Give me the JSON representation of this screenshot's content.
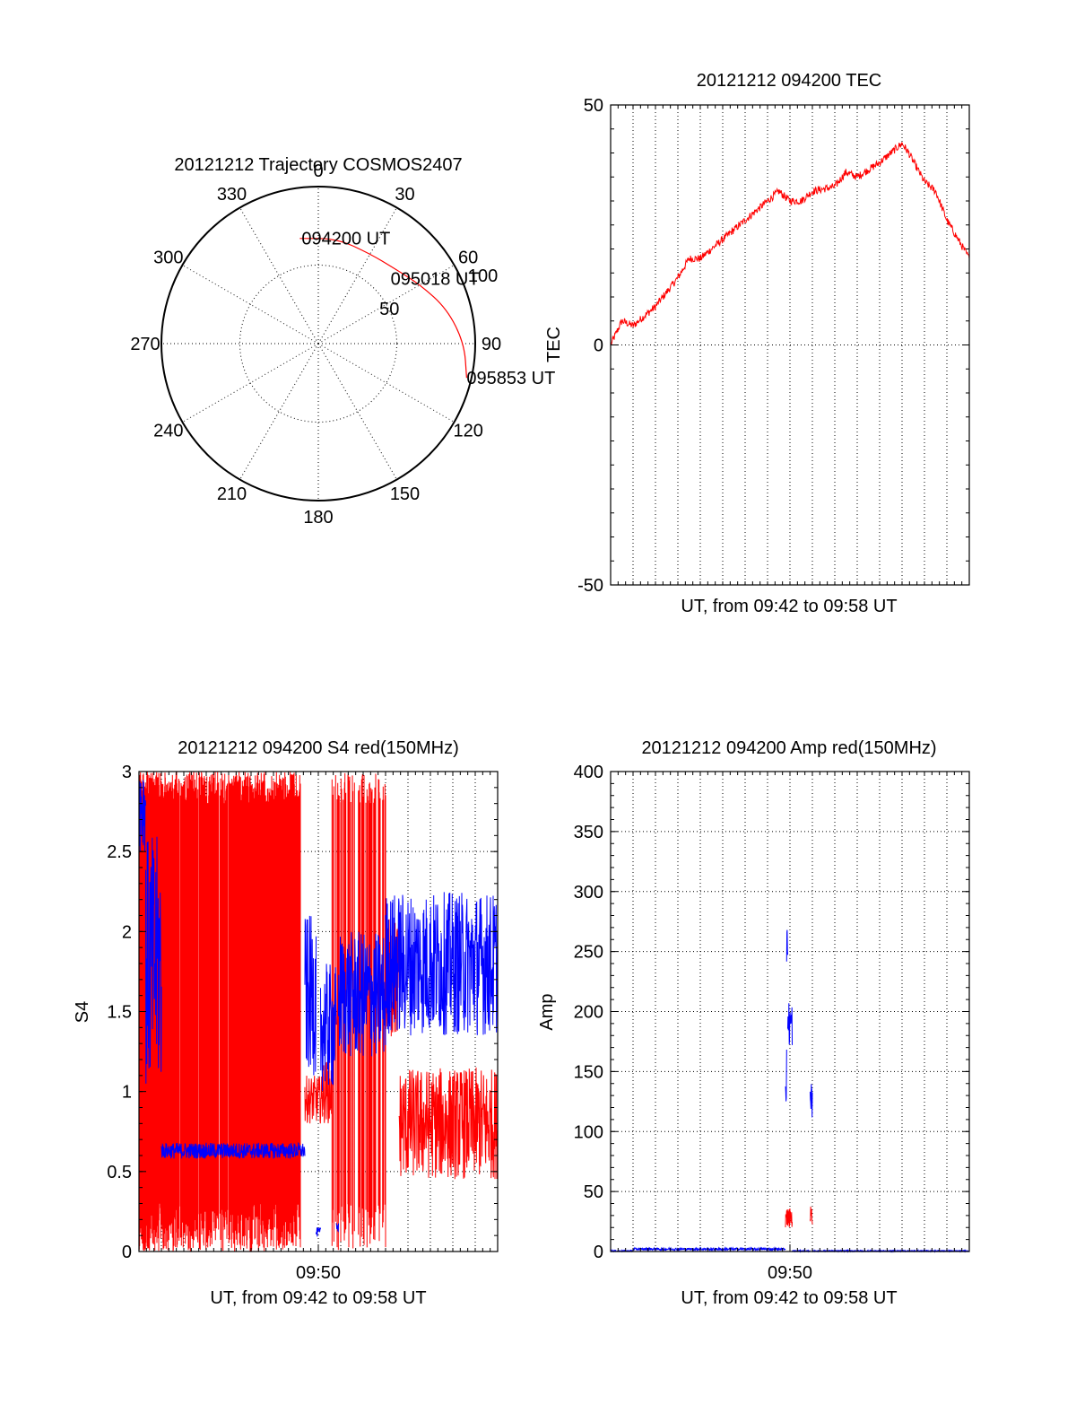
{
  "colors": {
    "red": "#ff0000",
    "blue": "#0000ff",
    "axis": "#000000"
  },
  "chart_data": [
    {
      "type": "polar",
      "title": "20121212 Trajectory COSMOS2407",
      "azimuth_labels": [
        "0",
        "30",
        "60",
        "90",
        "120",
        "150",
        "180",
        "210",
        "240",
        "270",
        "300",
        "330"
      ],
      "radius_labels": [
        "50",
        "100"
      ],
      "rlim": [
        0,
        100
      ],
      "series": [
        {
          "color": "red",
          "points": [
            {
              "az": 350,
              "r": 68
            },
            {
              "az": 10,
              "r": 68
            },
            {
              "az": 30,
              "r": 66
            },
            {
              "az": 45,
              "r": 68
            },
            {
              "az": 60,
              "r": 75
            },
            {
              "az": 75,
              "r": 85
            },
            {
              "az": 90,
              "r": 93
            },
            {
              "az": 103,
              "r": 97
            }
          ]
        }
      ],
      "annotations": [
        {
          "text": "094200 UT",
          "az": 351,
          "r": 68
        },
        {
          "text": "095018 UT",
          "az": 48,
          "r": 62
        },
        {
          "text": "095853 UT",
          "az": 103,
          "r": 97
        }
      ],
      "grid": true
    },
    {
      "type": "line",
      "title": "20121212 094200 TEC",
      "xlabel": "UT, from 09:42 to 09:58 UT",
      "ylabel": "TEC",
      "xlim": [
        "09:42",
        "09:58"
      ],
      "ylim": [
        -50,
        50
      ],
      "yticks": [
        "-50",
        "0",
        "50"
      ],
      "grid": true,
      "series": [
        {
          "color": "red",
          "points": [
            [
              "09:42",
              0
            ],
            [
              "09:42.5",
              5
            ],
            [
              "09:43",
              4
            ],
            [
              "09:44",
              8
            ],
            [
              "09:45",
              14
            ],
            [
              "09:45.5",
              18
            ],
            [
              "09:46",
              18
            ],
            [
              "09:47",
              22
            ],
            [
              "09:48",
              26
            ],
            [
              "09:49",
              30
            ],
            [
              "09:49.5",
              32
            ],
            [
              "09:50",
              30
            ],
            [
              "09:50.5",
              30
            ],
            [
              "09:51",
              32
            ],
            [
              "09:52",
              33
            ],
            [
              "09:52.5",
              36
            ],
            [
              "09:53",
              35
            ],
            [
              "09:54",
              38
            ],
            [
              "09:55",
              42
            ],
            [
              "09:55.3",
              40
            ],
            [
              "09:56",
              34
            ],
            [
              "09:56.5",
              32
            ],
            [
              "09:57",
              26
            ],
            [
              "09:58",
              18
            ]
          ]
        }
      ]
    },
    {
      "type": "line",
      "title": "20121212 094200 S4 red(150MHz)",
      "xlabel": "UT, from 09:42 to 09:58 UT",
      "ylabel": "S4",
      "xlim": [
        "09:42",
        "09:58"
      ],
      "xticks": [
        "09:50"
      ],
      "ylim": [
        0,
        3
      ],
      "yticks": [
        "0",
        "0.5",
        "1",
        "1.5",
        "2",
        "2.5",
        "3"
      ],
      "grid": true,
      "series": [
        {
          "color": "red",
          "segments": [
            {
              "x": [
                0.0,
                1.0
              ],
              "lo": 0,
              "hi": 3,
              "mode": "spikes",
              "density": 0.9
            },
            {
              "x": [
                1.0,
                7.2
              ],
              "lo": 0,
              "hi": 3,
              "mode": "spikes",
              "density": 0.75
            },
            {
              "x": [
                7.4,
                8.2
              ],
              "mean": 0.95,
              "noise": 0.15
            },
            {
              "x": [
                8.2,
                8.6
              ],
              "mean": 1.0,
              "noise": 0.2
            },
            {
              "x": [
                8.6,
                11.0
              ],
              "lo": 0,
              "hi": 3,
              "mode": "spikes",
              "density": 0.35
            },
            {
              "x": [
                11.0,
                11.6
              ],
              "mean": 1.7,
              "noise": 0.4
            },
            {
              "x": [
                11.6,
                16.0
              ],
              "mean": 0.8,
              "noise": 0.35
            }
          ]
        },
        {
          "color": "blue",
          "segments": [
            {
              "x": [
                0.0,
                0.3
              ],
              "mean": 2.8,
              "noise": 0.3
            },
            {
              "x": [
                0.3,
                1.0
              ],
              "mean": 1.8,
              "noise": 0.8
            },
            {
              "x": [
                1.0,
                7.4
              ],
              "mean": 0.63,
              "noise": 0.05
            },
            {
              "x": [
                7.4,
                7.9
              ],
              "mean": 1.6,
              "noise": 0.5
            },
            {
              "x": [
                7.9,
                8.1
              ],
              "mean": 0.12,
              "noise": 0.03
            },
            {
              "x": [
                8.1,
                8.8
              ],
              "mean": 1.4,
              "noise": 0.4
            },
            {
              "x": [
                8.8,
                8.9
              ],
              "mean": 0.15,
              "noise": 0.03
            },
            {
              "x": [
                8.9,
                11.0
              ],
              "mean": 1.6,
              "noise": 0.4
            },
            {
              "x": [
                11.0,
                16.0
              ],
              "mean": 1.8,
              "noise": 0.45
            }
          ]
        }
      ]
    },
    {
      "type": "line",
      "title": "20121212 094200 Amp red(150MHz)",
      "xlabel": "UT, from 09:42 to 09:58 UT",
      "ylabel": "Amp",
      "xlim": [
        "09:42",
        "09:58"
      ],
      "xticks": [
        "09:50"
      ],
      "ylim": [
        0,
        400
      ],
      "yticks": [
        "0",
        "50",
        "100",
        "150",
        "200",
        "250",
        "300",
        "350",
        "400"
      ],
      "grid": true,
      "series": [
        {
          "color": "red",
          "segments": [
            {
              "x": [
                7.8,
                8.1
              ],
              "mean": 28,
              "noise": 8
            },
            {
              "x": [
                8.9,
                9.0
              ],
              "mean": 30,
              "noise": 8
            }
          ]
        },
        {
          "color": "blue",
          "segments": [
            {
              "x": [
                0.0,
                1.0
              ],
              "mean": 0.5,
              "noise": 0.5
            },
            {
              "x": [
                1.0,
                7.8
              ],
              "mean": 2,
              "noise": 1
            },
            {
              "x": [
                7.8,
                7.85
              ],
              "mean": 150,
              "noise": 30
            },
            {
              "x": [
                7.85,
                7.9
              ],
              "mean": 255,
              "noise": 15
            },
            {
              "x": [
                7.9,
                8.1
              ],
              "mean": 190,
              "noise": 20
            },
            {
              "x": [
                8.1,
                8.9
              ],
              "mean": 0.5,
              "noise": 0.5
            },
            {
              "x": [
                8.9,
                9.0
              ],
              "mean": 120,
              "noise": 20
            },
            {
              "x": [
                9.0,
                16.0
              ],
              "mean": 0.5,
              "noise": 0.5
            }
          ]
        }
      ]
    }
  ]
}
